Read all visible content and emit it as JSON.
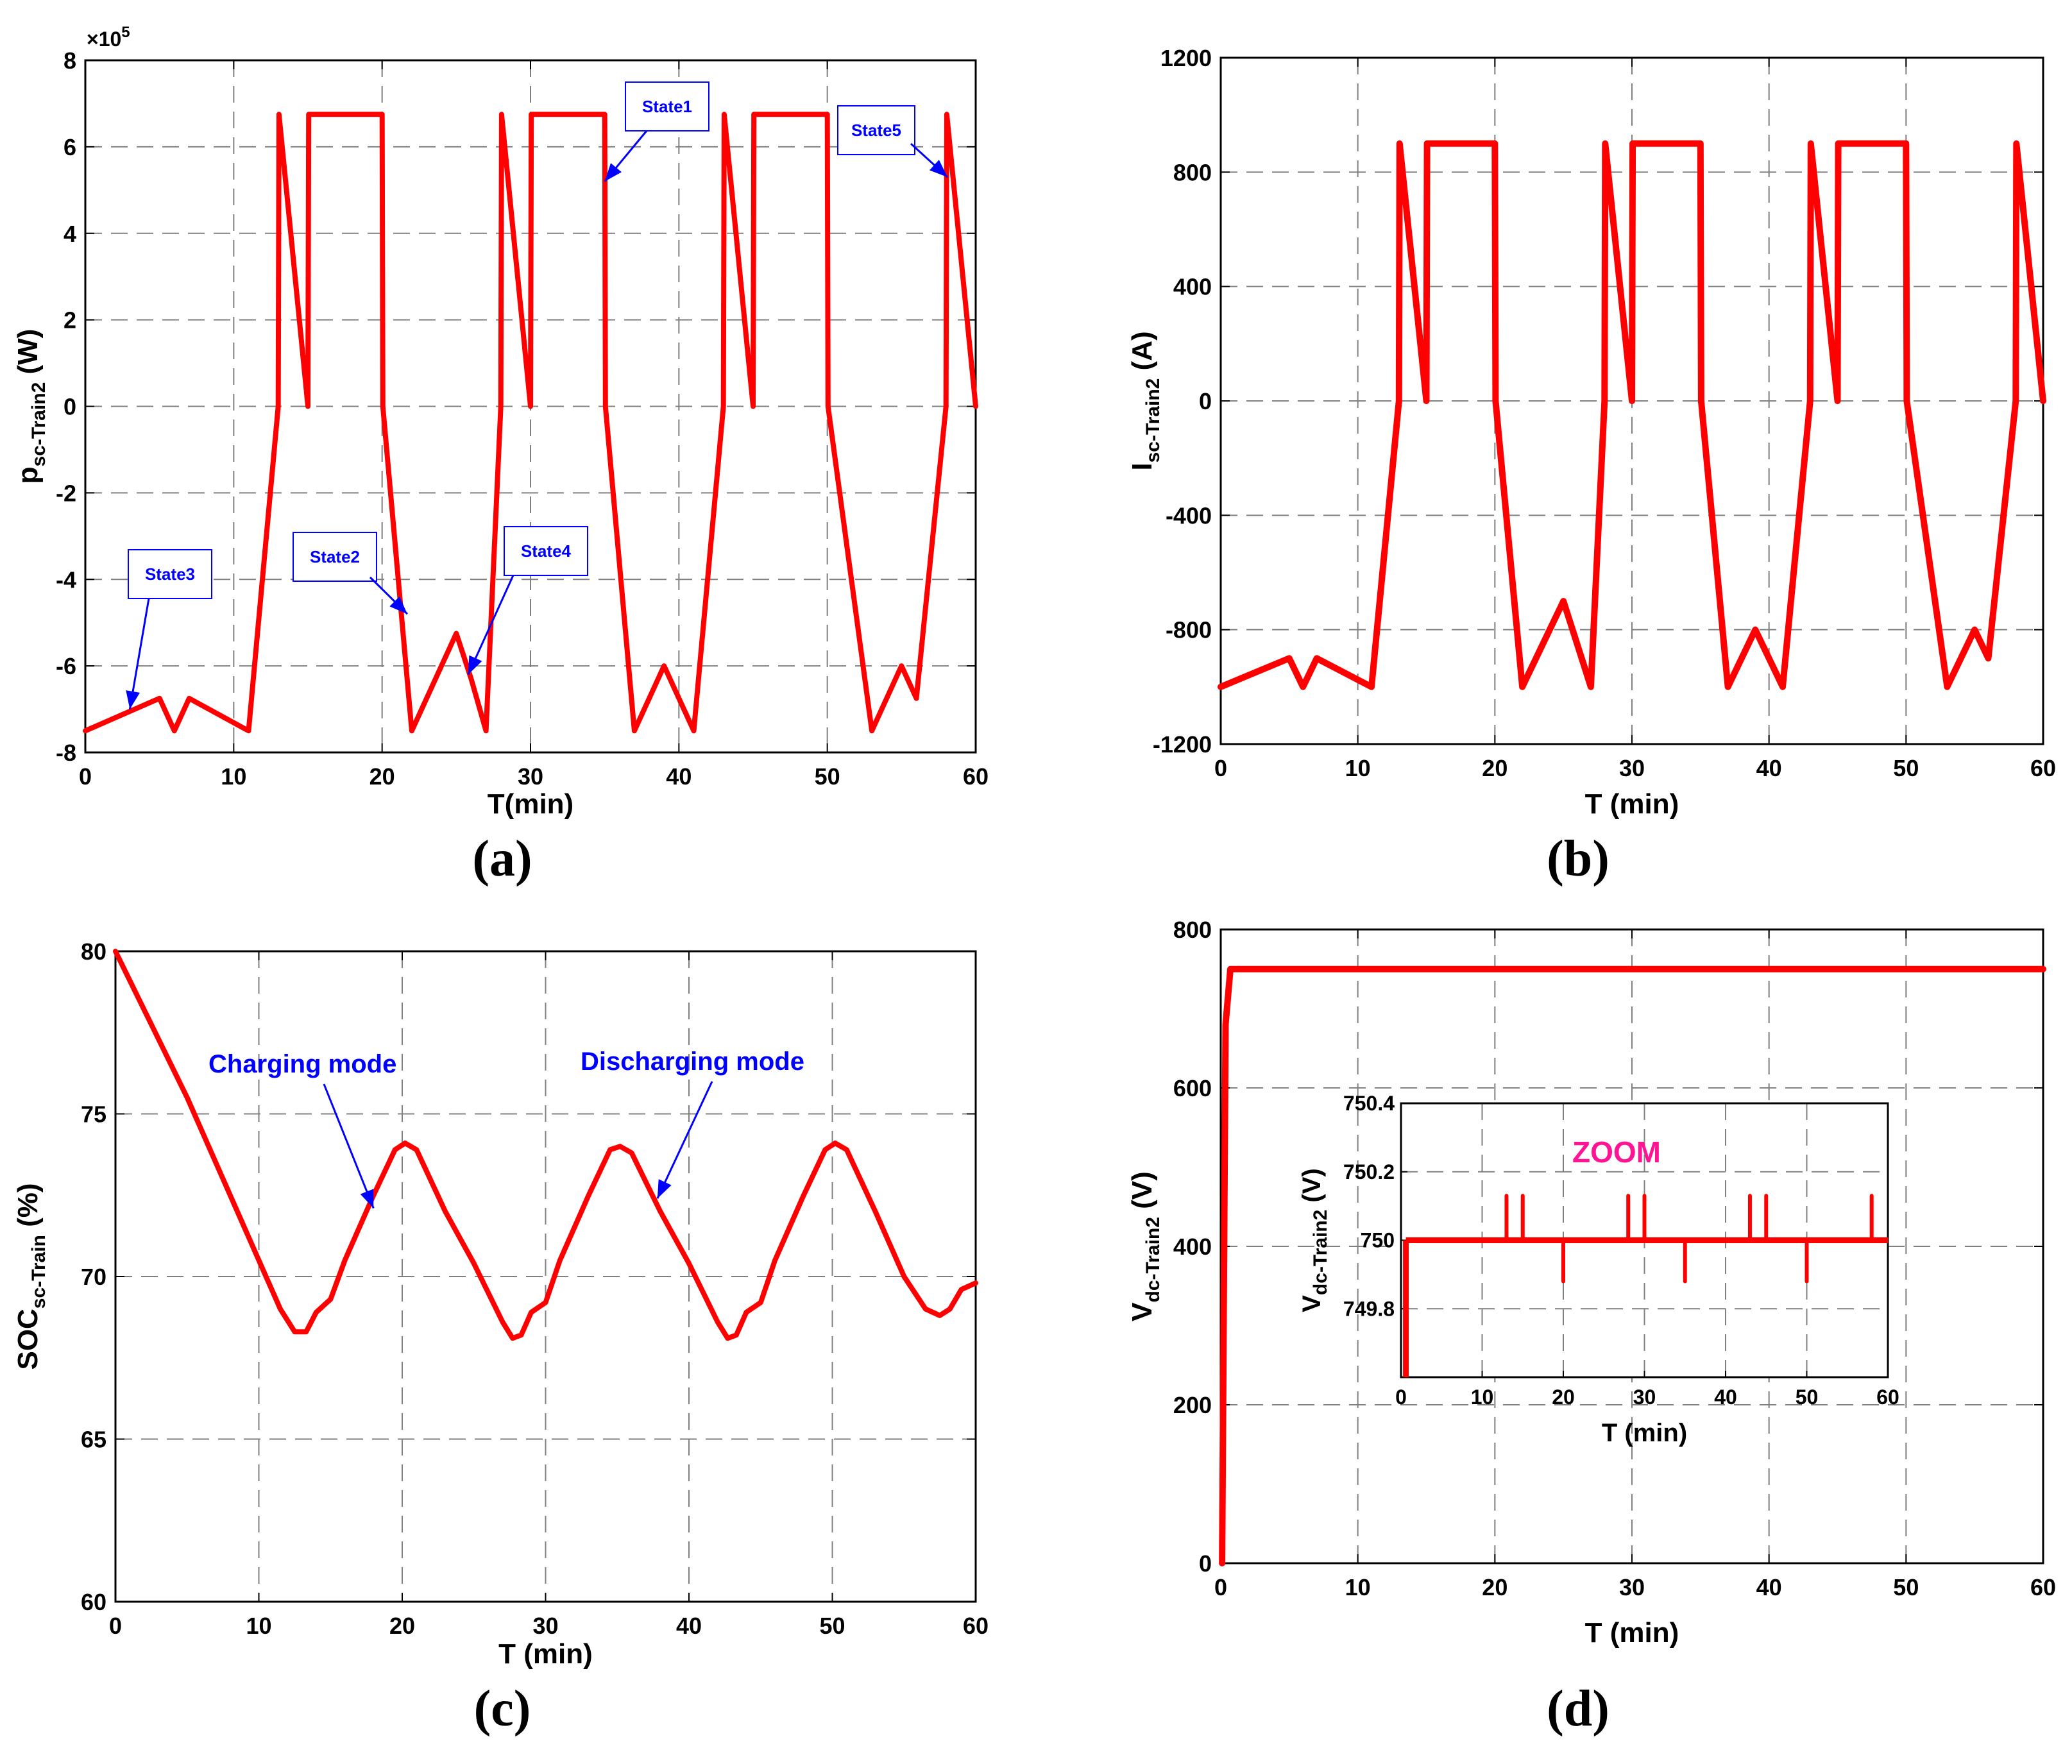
{
  "chart_data": [
    {
      "id": "a",
      "type": "line",
      "caption": "(a)",
      "xlabel": "T(min)",
      "ylabel_main": "p",
      "ylabel_sub": "sc-Train2",
      "ylabel_unit": " (W)",
      "y_multiplier": "×10",
      "y_multiplier_exp": "5",
      "xlim": [
        0,
        60
      ],
      "ylim": [
        -8,
        8
      ],
      "xticks": [
        0,
        10,
        20,
        30,
        40,
        50,
        60
      ],
      "yticks": [
        -8,
        -6,
        -4,
        -2,
        0,
        2,
        4,
        6,
        8
      ],
      "grid": true,
      "series": [
        {
          "name": "Psc-Train2",
          "color": "#ff0000",
          "x": [
            0,
            5,
            6,
            7,
            11,
            13,
            13.05,
            15,
            15.05,
            20,
            20.05,
            22,
            25,
            26,
            27,
            28,
            28.05,
            30,
            30.05,
            35,
            35.05,
            37,
            39,
            41,
            43,
            43.05,
            45,
            45.05,
            50,
            50.05,
            53,
            55,
            56,
            58,
            58.05,
            60
          ],
          "values": [
            -7.5,
            -6.75,
            -7.5,
            -6.75,
            -7.5,
            0,
            6.75,
            0,
            6.75,
            6.75,
            0,
            -7.5,
            -5.25,
            -6.3,
            -7.5,
            0,
            6.75,
            0,
            6.75,
            6.75,
            0,
            -7.5,
            -6,
            -7.5,
            0,
            6.75,
            0,
            6.75,
            6.75,
            0,
            -7.5,
            -6,
            -6.75,
            0,
            6.75,
            0
          ]
        }
      ],
      "annotations": [
        {
          "text": "State1",
          "x": 35,
          "y": 5.2
        },
        {
          "text": "State2",
          "x": 21.7,
          "y": -4.8
        },
        {
          "text": "State3",
          "x": 3,
          "y": -7.0
        },
        {
          "text": "State4",
          "x": 25.8,
          "y": -6.2
        },
        {
          "text": "State5",
          "x": 58.1,
          "y": 5.3
        }
      ]
    },
    {
      "id": "b",
      "type": "line",
      "caption": "(b)",
      "xlabel": "T (min)",
      "ylabel_main": "I",
      "ylabel_sub": "sc-Train2",
      "ylabel_unit": " (A)",
      "xlim": [
        0,
        60
      ],
      "ylim": [
        -1200,
        1200
      ],
      "xticks": [
        0,
        10,
        20,
        30,
        40,
        50,
        60
      ],
      "yticks": [
        -1200,
        -800,
        -400,
        0,
        400,
        800,
        1200
      ],
      "grid": true,
      "series": [
        {
          "name": "Isc-Train2",
          "color": "#ff0000",
          "x": [
            0,
            5,
            6,
            7,
            11,
            13,
            13.05,
            15,
            15.05,
            20,
            20.05,
            22,
            25,
            27,
            28,
            28.05,
            30,
            30.05,
            35,
            35.05,
            37,
            39,
            41,
            43,
            43.05,
            45,
            45.05,
            50,
            50.05,
            53,
            55,
            56,
            58,
            58.05,
            60
          ],
          "values": [
            -1000,
            -900,
            -1000,
            -900,
            -1000,
            0,
            900,
            0,
            900,
            900,
            0,
            -1000,
            -700,
            -1000,
            0,
            900,
            0,
            900,
            900,
            0,
            -1000,
            -800,
            -1000,
            0,
            900,
            0,
            900,
            900,
            0,
            -1000,
            -800,
            -900,
            0,
            900,
            0
          ]
        }
      ]
    },
    {
      "id": "c",
      "type": "line",
      "caption": "(c)",
      "xlabel": "T (min)",
      "ylabel_main": "SOC",
      "ylabel_sub": "sc-Train",
      "ylabel_unit": " (%)",
      "xlim": [
        0,
        60
      ],
      "ylim": [
        60,
        80
      ],
      "xticks": [
        0,
        10,
        20,
        30,
        40,
        50,
        60
      ],
      "yticks": [
        60,
        65,
        70,
        75,
        80
      ],
      "grid": true,
      "series": [
        {
          "name": "SOCsc-Train",
          "color": "#ff0000",
          "x": [
            0,
            5,
            10,
            11.5,
            12.5,
            13.3,
            14,
            15,
            16,
            18,
            19.5,
            20.2,
            21,
            23,
            25,
            26,
            27,
            27.7,
            28.3,
            29,
            30,
            31,
            33,
            34.5,
            35.2,
            36,
            38,
            40,
            41,
            42,
            42.7,
            43.3,
            44,
            45,
            46,
            48,
            49.5,
            50.2,
            51,
            53,
            55,
            56.5,
            57.5,
            58.2,
            59,
            60
          ],
          "values": [
            80,
            75.5,
            70.5,
            69,
            68.3,
            68.3,
            68.9,
            69.3,
            70.5,
            72.5,
            73.9,
            74.1,
            73.9,
            72,
            70.4,
            69.5,
            68.6,
            68.1,
            68.2,
            68.9,
            69.2,
            70.5,
            72.5,
            73.9,
            74.0,
            73.8,
            72.0,
            70.4,
            69.5,
            68.6,
            68.1,
            68.2,
            68.9,
            69.2,
            70.5,
            72.5,
            73.9,
            74.1,
            73.9,
            72.0,
            70.0,
            69.0,
            68.8,
            69.0,
            69.6,
            69.8
          ]
        }
      ],
      "annotations": [
        {
          "text": "Charging mode",
          "x": 18,
          "y": 72.1
        },
        {
          "text": "Discharging mode",
          "x": 37.8,
          "y": 72.4
        }
      ]
    },
    {
      "id": "d",
      "type": "line",
      "caption": "(d)",
      "xlabel": "T (min)",
      "ylabel_main": "V",
      "ylabel_sub": "dc-Train2",
      "ylabel_unit": " (V)",
      "xlim": [
        0,
        60
      ],
      "ylim": [
        0,
        800
      ],
      "xticks": [
        0,
        10,
        20,
        30,
        40,
        50,
        60
      ],
      "yticks": [
        0,
        200,
        400,
        600,
        800
      ],
      "grid": true,
      "series": [
        {
          "name": "Vdc-Train2",
          "color": "#ff0000",
          "x": [
            0.1,
            0.35,
            0.7,
            60
          ],
          "values": [
            0,
            680,
            750,
            750
          ]
        }
      ],
      "inset": {
        "label": "ZOOM",
        "xlabel": "T (min)",
        "ylabel_main": "V",
        "ylabel_sub": "dc-Train2",
        "ylabel_unit": " (V)",
        "xlim": [
          0,
          60
        ],
        "ylim": [
          749.6,
          750.4
        ],
        "xticks": [
          0,
          10,
          20,
          30,
          40,
          50,
          60
        ],
        "yticks": [
          749.8,
          750,
          750.2,
          750.4
        ],
        "grid": true,
        "baseline": 750,
        "start_x": 0.6,
        "spikes": [
          {
            "x": 13,
            "y": 750.13
          },
          {
            "x": 15,
            "y": 750.13
          },
          {
            "x": 20,
            "y": 749.88
          },
          {
            "x": 28,
            "y": 750.13
          },
          {
            "x": 30,
            "y": 750.13
          },
          {
            "x": 35,
            "y": 749.88
          },
          {
            "x": 43,
            "y": 750.13
          },
          {
            "x": 45,
            "y": 750.13
          },
          {
            "x": 50,
            "y": 749.88
          },
          {
            "x": 58,
            "y": 750.13
          }
        ]
      }
    }
  ]
}
